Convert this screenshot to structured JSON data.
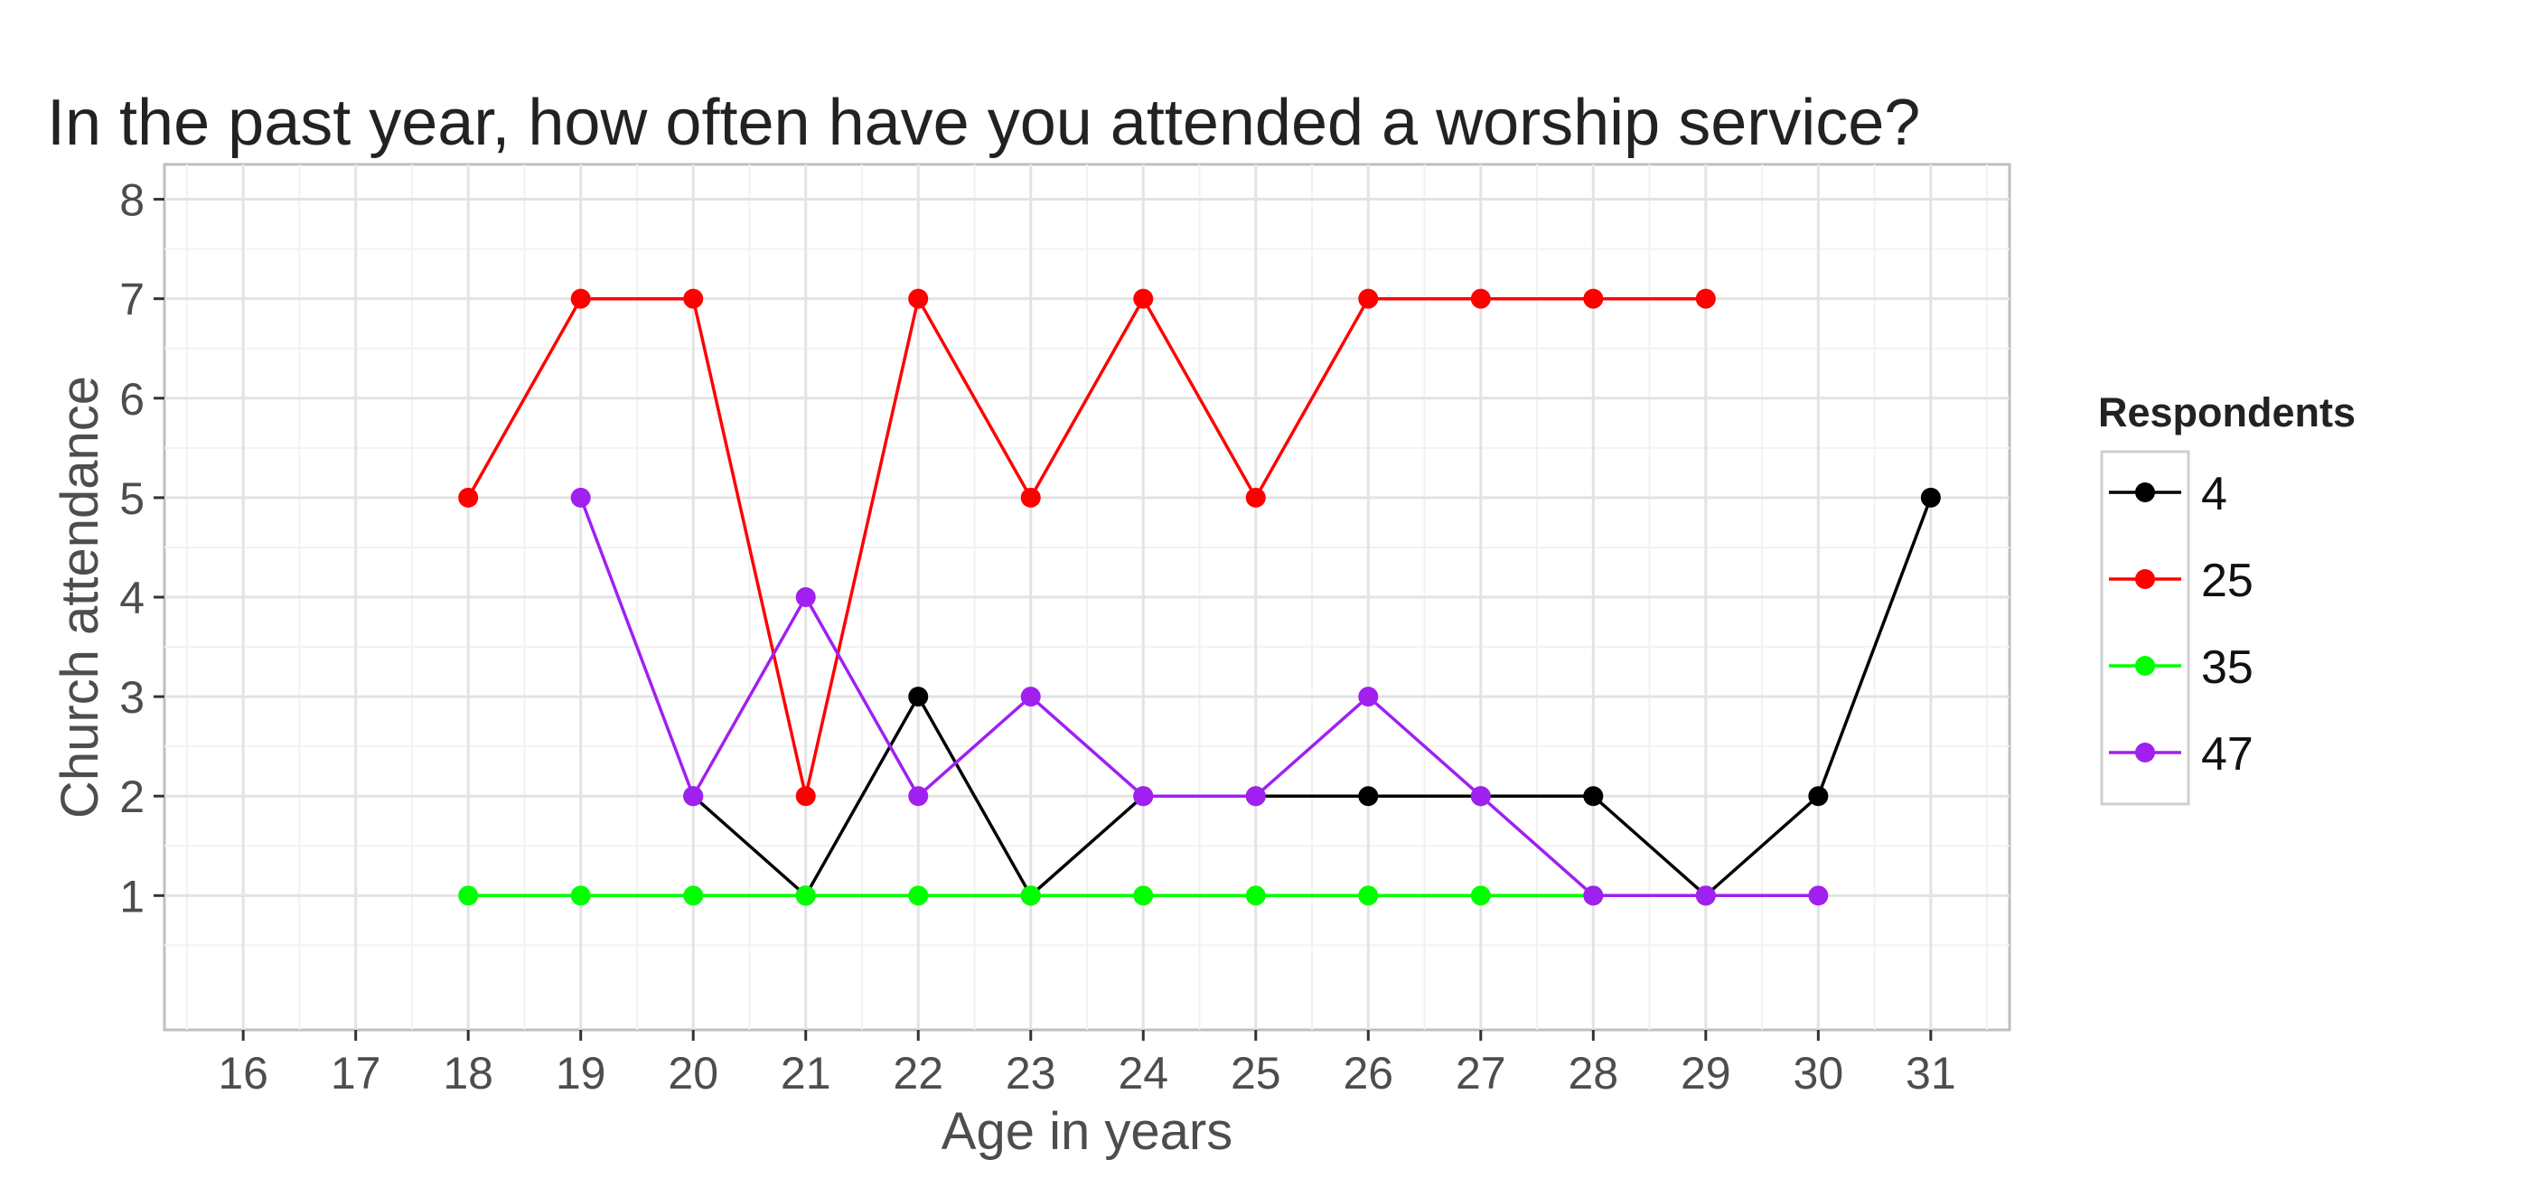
{
  "chart_data": {
    "type": "line",
    "title": "In the past year, how often have you attended a worship service?",
    "xlabel": "Age in years",
    "ylabel": "Church attendance",
    "xlim": [
      15.3,
      31.7
    ],
    "ylim": [
      -0.35,
      8.35
    ],
    "x_ticks": [
      16,
      17,
      18,
      19,
      20,
      21,
      22,
      23,
      24,
      25,
      26,
      27,
      28,
      29,
      30,
      31
    ],
    "y_ticks": [
      1,
      2,
      3,
      4,
      5,
      6,
      7,
      8
    ],
    "grid": true,
    "legend": {
      "title": "Respondents",
      "position": "right"
    },
    "series": [
      {
        "name": "4",
        "color": "#000000",
        "x": [
          20,
          21,
          22,
          23,
          24,
          25,
          26,
          27,
          28,
          29,
          30,
          31
        ],
        "y": [
          2,
          1,
          3,
          1,
          2,
          2,
          2,
          2,
          2,
          1,
          2,
          5
        ]
      },
      {
        "name": "25",
        "color": "#ff0000",
        "x": [
          18,
          19,
          20,
          21,
          22,
          23,
          24,
          25,
          26,
          27,
          28,
          29
        ],
        "y": [
          5,
          7,
          7,
          2,
          7,
          5,
          7,
          5,
          7,
          7,
          7,
          7
        ]
      },
      {
        "name": "35",
        "color": "#00ff00",
        "x": [
          18,
          19,
          20,
          21,
          22,
          23,
          24,
          25,
          26,
          27,
          28
        ],
        "y": [
          1,
          1,
          1,
          1,
          1,
          1,
          1,
          1,
          1,
          1,
          1
        ]
      },
      {
        "name": "47",
        "color": "#a020f0",
        "x": [
          19,
          20,
          21,
          22,
          23,
          24,
          25,
          26,
          27,
          28,
          29,
          30
        ],
        "y": [
          5,
          2,
          4,
          2,
          3,
          2,
          2,
          3,
          2,
          1,
          1,
          1
        ]
      }
    ]
  }
}
